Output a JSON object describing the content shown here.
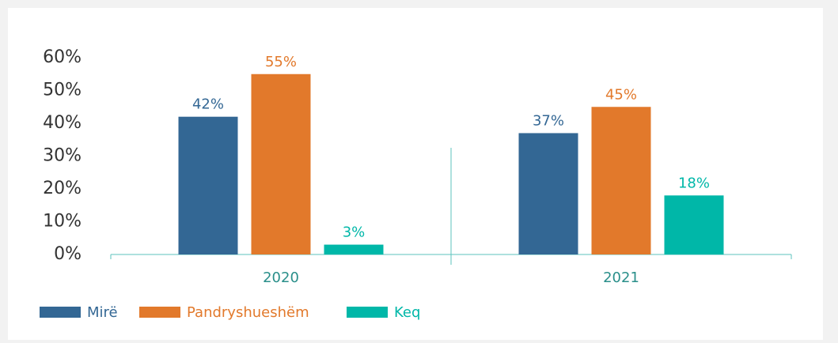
{
  "chart_data": {
    "type": "bar",
    "categories": [
      "2020",
      "2021"
    ],
    "series": [
      {
        "name": "Mirë",
        "color": "#336794",
        "values": [
          42,
          37
        ],
        "value_labels": [
          "42%",
          "37%"
        ]
      },
      {
        "name": "Pandryshueshëm",
        "color": "#e2792b",
        "values": [
          55,
          45
        ],
        "value_labels": [
          "55%",
          "45%"
        ]
      },
      {
        "name": "Keq",
        "color": "#00b7a8",
        "values": [
          3,
          18
        ],
        "value_labels": [
          "3%",
          "18%"
        ]
      }
    ],
    "ylim": [
      0,
      60
    ],
    "yticks": [
      {
        "value": 0,
        "label": "0%"
      },
      {
        "value": 10,
        "label": "10%"
      },
      {
        "value": 20,
        "label": "20%"
      },
      {
        "value": 30,
        "label": "30%"
      },
      {
        "value": 40,
        "label": "40%"
      },
      {
        "value": 50,
        "label": "50%"
      },
      {
        "value": 60,
        "label": "60%"
      }
    ],
    "grid": false
  }
}
